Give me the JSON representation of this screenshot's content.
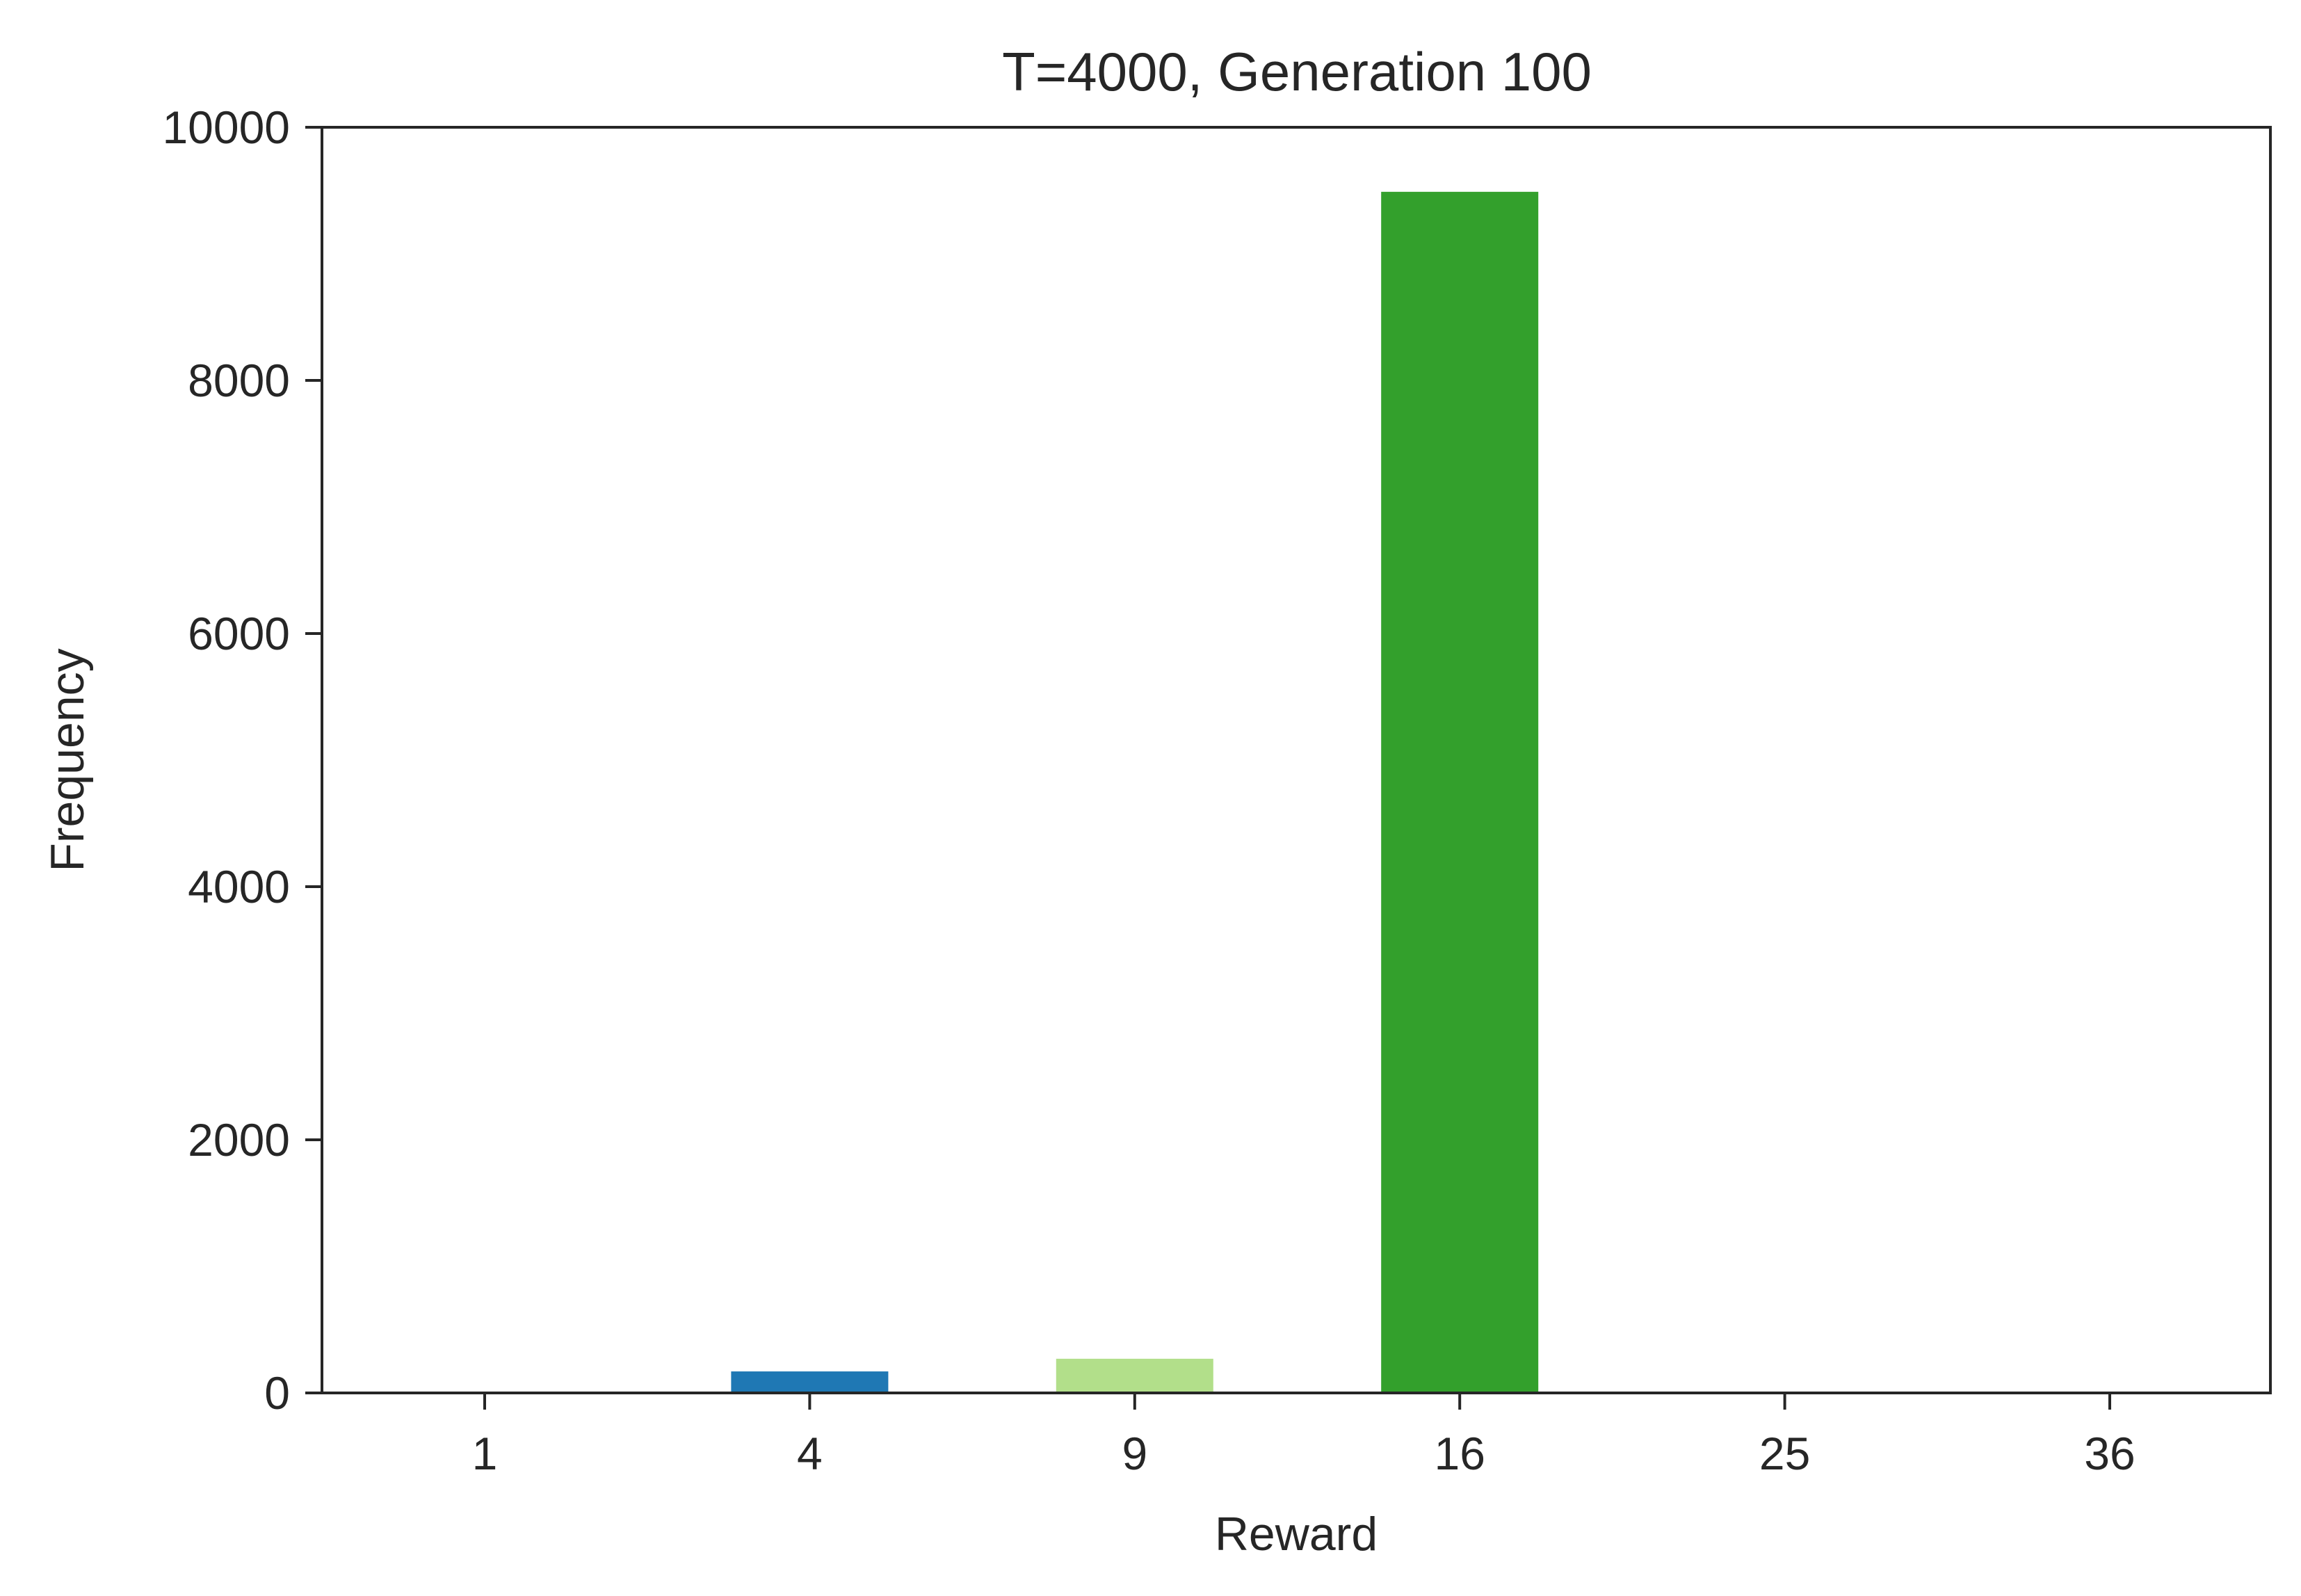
{
  "chart_data": {
    "type": "bar",
    "title": "T=4000, Generation 100",
    "xlabel": "Reward",
    "ylabel": "Frequency",
    "categories": [
      "1",
      "4",
      "9",
      "16",
      "25",
      "36"
    ],
    "values": [
      0,
      170,
      270,
      9490,
      0,
      0
    ],
    "colors": [
      "#a6cee3",
      "#1f78b4",
      "#b2df8a",
      "#33a02c",
      "#fb9a99",
      "#e31a1c"
    ],
    "ylim": [
      0,
      10000
    ],
    "yticks": [
      0,
      2000,
      4000,
      6000,
      8000,
      10000
    ],
    "grid": false,
    "legend": "none"
  }
}
